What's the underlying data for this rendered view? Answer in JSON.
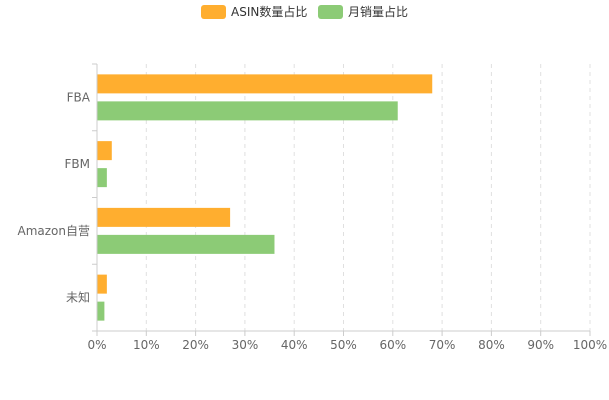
{
  "chart_data": {
    "type": "bar",
    "orientation": "horizontal",
    "categories": [
      "FBA",
      "FBM",
      "Amazon自营",
      "未知"
    ],
    "series": [
      {
        "name": "ASIN数量占比",
        "color": "#FFAE2F",
        "values": [
          68,
          3,
          27,
          2
        ]
      },
      {
        "name": "月销量占比",
        "color": "#8CCB76",
        "values": [
          61,
          2,
          36,
          1.5
        ]
      }
    ],
    "x_ticks": [
      "0%",
      "10%",
      "20%",
      "30%",
      "40%",
      "50%",
      "60%",
      "70%",
      "80%",
      "90%",
      "100%"
    ],
    "xlim": [
      0,
      100
    ],
    "grid": "vertical-dashed",
    "legend_position": "top-center"
  }
}
